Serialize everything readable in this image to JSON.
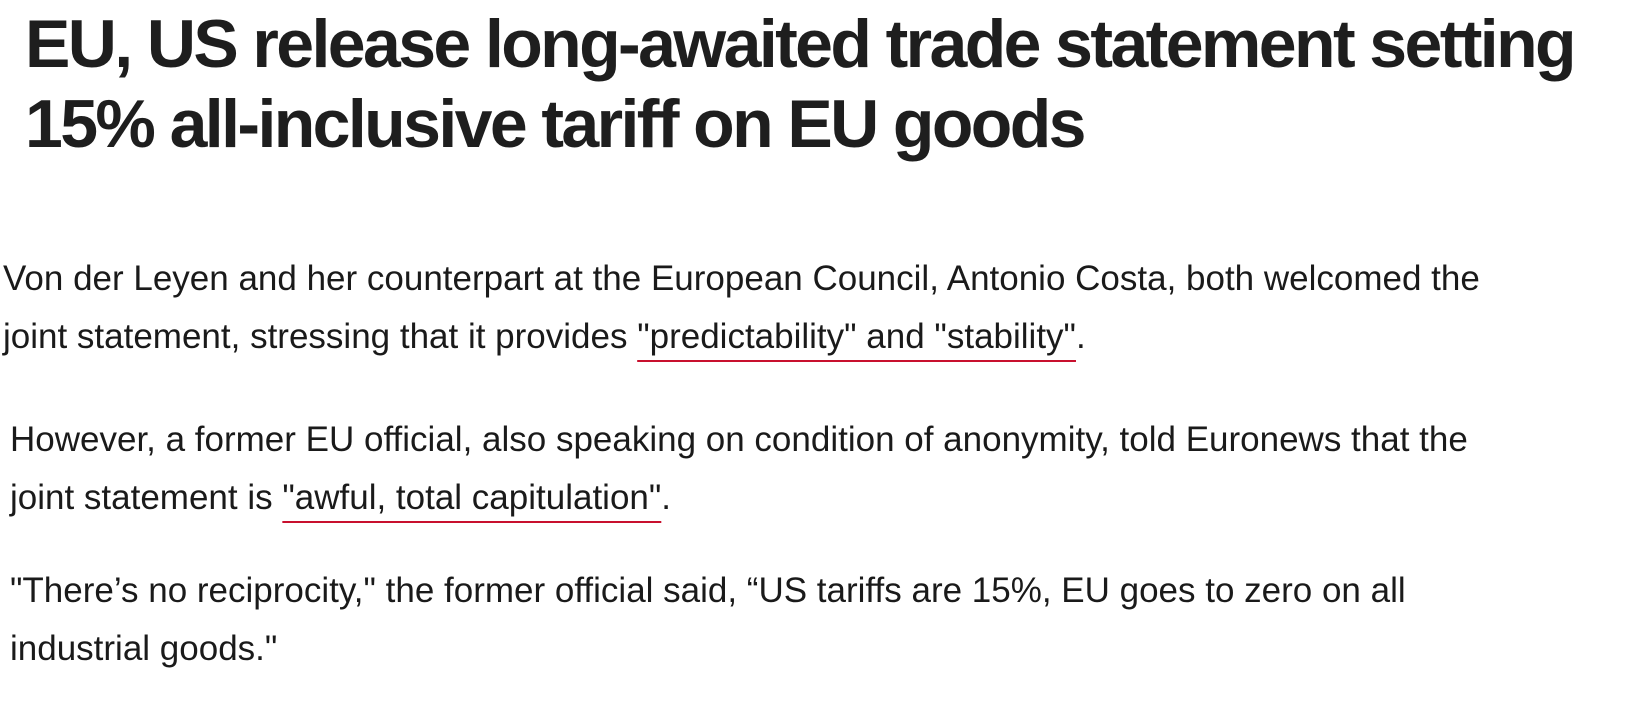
{
  "headline": "EU, US release long-awaited trade statement setting 15% all-inclusive tariff on EU goods",
  "paragraphs": [
    {
      "segments": [
        "Von der Leyen and her counterpart at the European Council, Antonio Costa, both welcomed the joint statement, stressing that it provides ",
        "\"predictability\" and \"stability\"",
        "."
      ]
    },
    {
      "segments": [
        "However, a former EU official, also speaking on condition of anonymity, told Euronews that the joint statement is ",
        "\"awful, total capitulation\"",
        "."
      ]
    },
    {
      "segments": [
        "\"There’s no reciprocity,\" the former official said, “US tariffs are 15%, EU goes to zero on all industrial goods.\""
      ]
    }
  ]
}
